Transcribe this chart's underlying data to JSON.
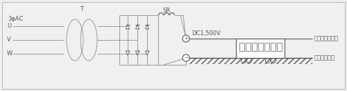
{
  "bg_color": "#f0f0f0",
  "lc": "#999999",
  "dc": "#555555",
  "figsize": [
    5.0,
    1.32
  ],
  "dpi": 100,
  "labels": {
    "three_phase": "3φAC",
    "T": "T",
    "SR": "SR",
    "dc_voltage": "DC1,500V",
    "catenary": "架線（電車線）",
    "rail": "軌条（帰線）",
    "U": "U",
    "V": "V",
    "W": "W"
  }
}
